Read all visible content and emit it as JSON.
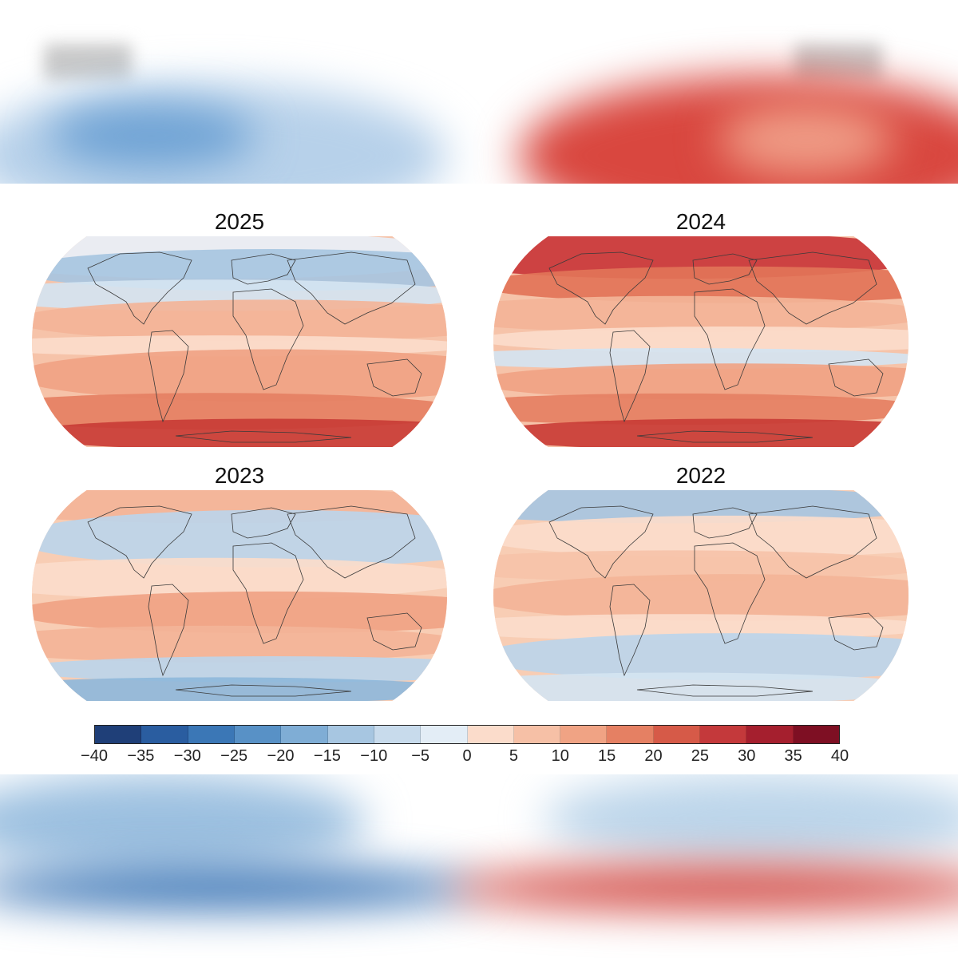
{
  "panels": [
    {
      "title": "2025",
      "fill": "#f6c3a9",
      "bands": [
        {
          "lat": 0.0,
          "h": 0.18,
          "color": "#e8f0f8"
        },
        {
          "lat": 0.08,
          "h": 0.16,
          "color": "#a7c6e1"
        },
        {
          "lat": 0.22,
          "h": 0.12,
          "color": "#d4e4f1"
        },
        {
          "lat": 0.32,
          "h": 0.16,
          "color": "#f3b498"
        },
        {
          "lat": 0.48,
          "h": 0.08,
          "color": "#fbdccb"
        },
        {
          "lat": 0.56,
          "h": 0.2,
          "color": "#f0a384"
        },
        {
          "lat": 0.76,
          "h": 0.14,
          "color": "#e58063"
        },
        {
          "lat": 0.88,
          "h": 0.12,
          "color": "#c93d36"
        }
      ]
    },
    {
      "title": "2024",
      "fill": "#f6c3a9",
      "bands": [
        {
          "lat": 0.0,
          "h": 0.18,
          "color": "#c9373a"
        },
        {
          "lat": 0.16,
          "h": 0.14,
          "color": "#e27458"
        },
        {
          "lat": 0.3,
          "h": 0.14,
          "color": "#f3b498"
        },
        {
          "lat": 0.44,
          "h": 0.1,
          "color": "#fbdccb"
        },
        {
          "lat": 0.54,
          "h": 0.08,
          "color": "#d4e4f1"
        },
        {
          "lat": 0.62,
          "h": 0.14,
          "color": "#f0a384"
        },
        {
          "lat": 0.76,
          "h": 0.12,
          "color": "#e58063"
        },
        {
          "lat": 0.88,
          "h": 0.12,
          "color": "#c93d36"
        }
      ]
    },
    {
      "title": "2023",
      "fill": "#f8cdb4",
      "bands": [
        {
          "lat": 0.0,
          "h": 0.14,
          "color": "#f3b498"
        },
        {
          "lat": 0.12,
          "h": 0.22,
          "color": "#bcd5ea"
        },
        {
          "lat": 0.34,
          "h": 0.16,
          "color": "#fbdccb"
        },
        {
          "lat": 0.5,
          "h": 0.16,
          "color": "#f0a384"
        },
        {
          "lat": 0.66,
          "h": 0.14,
          "color": "#f3b498"
        },
        {
          "lat": 0.8,
          "h": 0.1,
          "color": "#bcd5ea"
        },
        {
          "lat": 0.9,
          "h": 0.1,
          "color": "#8fb8db"
        }
      ]
    },
    {
      "title": "2022",
      "fill": "#f8cdb4",
      "bands": [
        {
          "lat": 0.0,
          "h": 0.14,
          "color": "#a7c6e1"
        },
        {
          "lat": 0.14,
          "h": 0.16,
          "color": "#fbdccb"
        },
        {
          "lat": 0.3,
          "h": 0.12,
          "color": "#f6c3a9"
        },
        {
          "lat": 0.42,
          "h": 0.18,
          "color": "#f3b498"
        },
        {
          "lat": 0.6,
          "h": 0.1,
          "color": "#fbdccb"
        },
        {
          "lat": 0.7,
          "h": 0.18,
          "color": "#bcd5ea"
        },
        {
          "lat": 0.88,
          "h": 0.12,
          "color": "#d4e4f1"
        }
      ]
    }
  ],
  "colorbar": {
    "colors": [
      "#1f3f78",
      "#2a5da0",
      "#3b77b6",
      "#5891c6",
      "#7fadd5",
      "#a7c6e1",
      "#c8dbec",
      "#e3edf6",
      "#fbdccb",
      "#f6c0a6",
      "#f0a384",
      "#e58063",
      "#d65a48",
      "#c4393b",
      "#a51f2e",
      "#7e0f23"
    ],
    "ticks": [
      "−40",
      "−35",
      "−30",
      "−25",
      "−20",
      "−15",
      "−10",
      "−5",
      "0",
      "5",
      "10",
      "15",
      "20",
      "25",
      "30",
      "35",
      "40"
    ]
  },
  "background": {
    "top_left_color": "#9dc2e2",
    "top_right_color": "#d9473f",
    "bottom_left_color": "#7fa9d3",
    "bottom_right_color": "#d24a44"
  }
}
